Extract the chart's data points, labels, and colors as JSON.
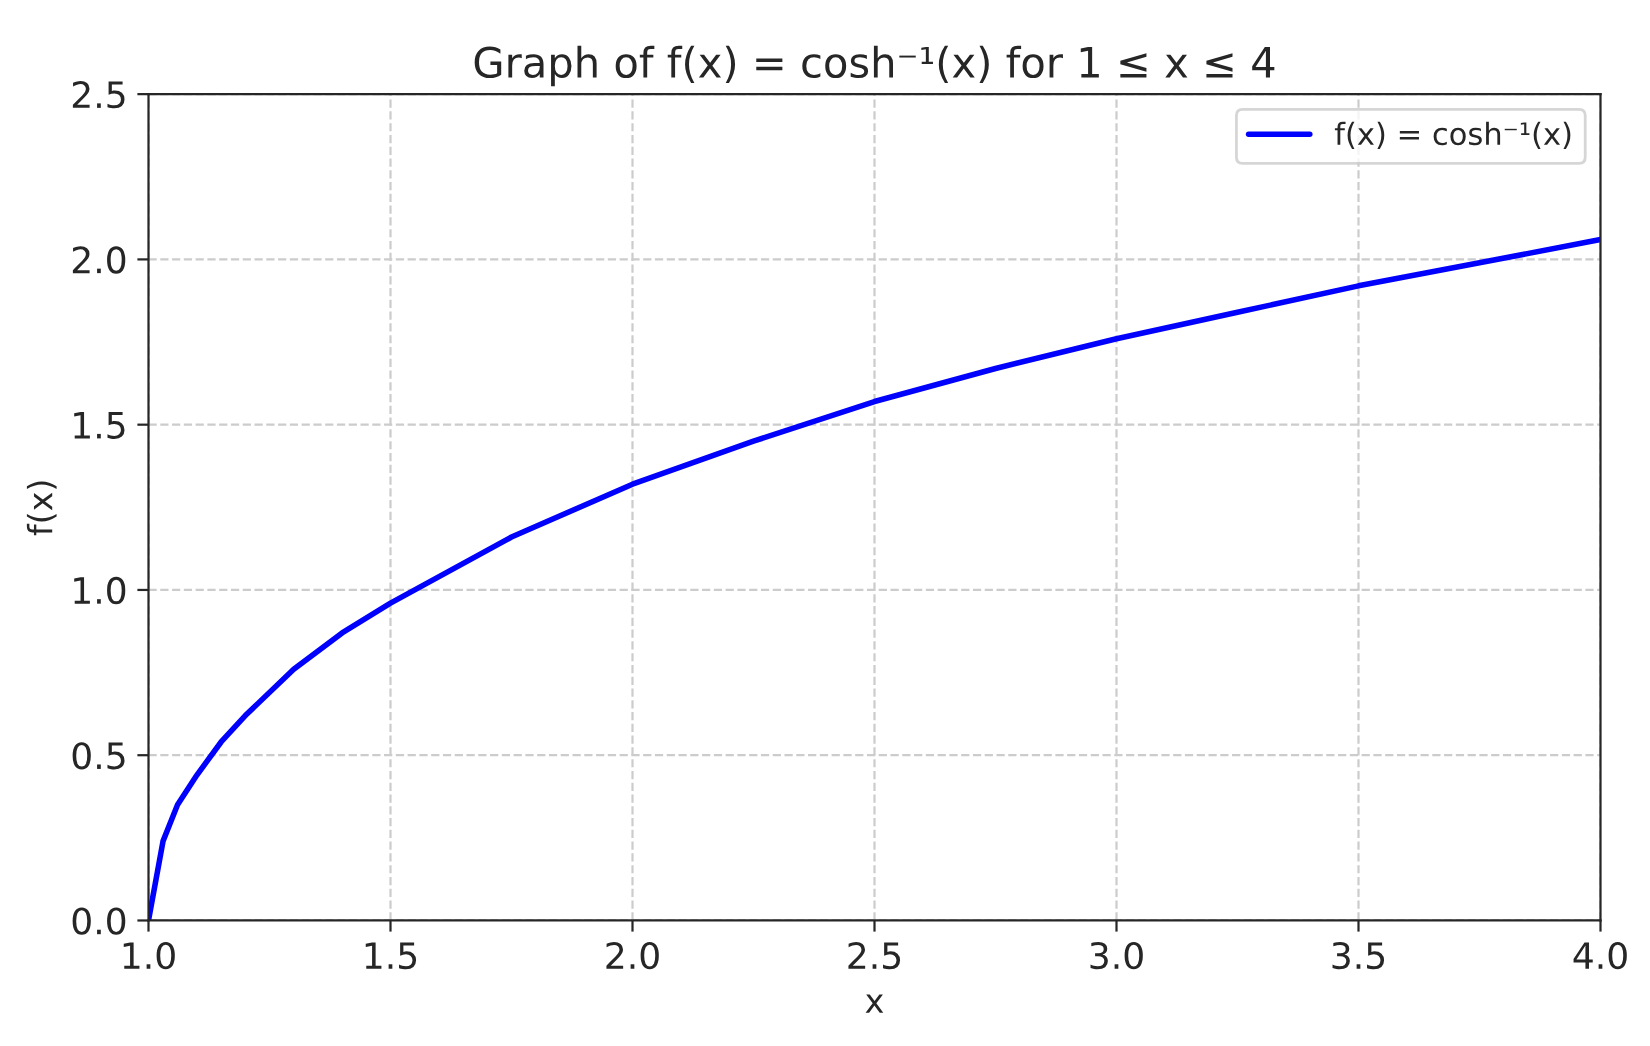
{
  "chart_data": {
    "type": "line",
    "title": "Graph of f(x) = cosh⁻¹(x) for 1 ≤ x ≤ 4",
    "xlabel": "x",
    "ylabel": "f(x)",
    "series": [
      {
        "name": "f(x) = cosh⁻¹(x)",
        "color": "#0000ff",
        "x": [
          1.0,
          1.03,
          1.06,
          1.1,
          1.15,
          1.2,
          1.3,
          1.4,
          1.5,
          1.75,
          2.0,
          2.25,
          2.5,
          2.75,
          3.0,
          3.25,
          3.5,
          3.75,
          4.0
        ],
        "values": [
          0,
          0.24,
          0.35,
          0.44,
          0.54,
          0.62,
          0.76,
          0.87,
          0.96,
          1.16,
          1.32,
          1.45,
          1.57,
          1.67,
          1.76,
          1.84,
          1.92,
          1.99,
          2.06
        ]
      }
    ],
    "xlim": [
      1.0,
      4.0
    ],
    "ylim": [
      0.0,
      2.5
    ],
    "xticks": [
      {
        "value": 1.0,
        "label": "1.0"
      },
      {
        "value": 1.5,
        "label": "1.5"
      },
      {
        "value": 2.0,
        "label": "2.0"
      },
      {
        "value": 2.5,
        "label": "2.5"
      },
      {
        "value": 3.0,
        "label": "3.0"
      },
      {
        "value": 3.5,
        "label": "3.5"
      },
      {
        "value": 4.0,
        "label": "4.0"
      }
    ],
    "yticks": [
      {
        "value": 0.0,
        "label": "0.0"
      },
      {
        "value": 0.5,
        "label": "0.5"
      },
      {
        "value": 1.0,
        "label": "1.0"
      },
      {
        "value": 1.5,
        "label": "1.5"
      },
      {
        "value": 2.0,
        "label": "2.0"
      },
      {
        "value": 2.5,
        "label": "2.5"
      }
    ],
    "grid": true,
    "legend": "top right",
    "line_style": "solid",
    "marker": "none"
  }
}
